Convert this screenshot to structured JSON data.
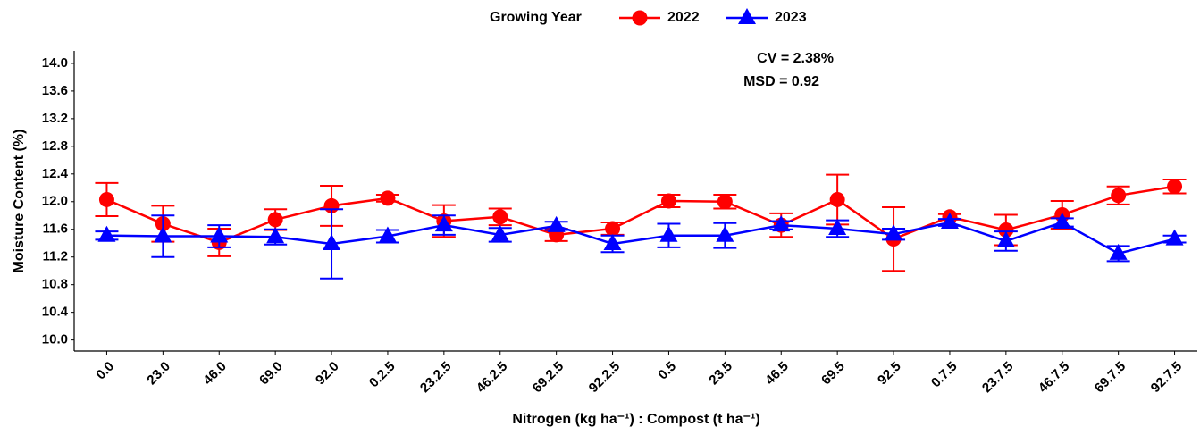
{
  "chart_data": {
    "type": "line",
    "legend_title": "Growing Year",
    "legend_position": "top",
    "x_label": "Nitrogen (kg ha⁻¹) : Compost (t ha⁻¹)",
    "y_label": "Moisture Content (%)",
    "annotations": [
      "CV = 2.38%",
      "MSD = 0.92"
    ],
    "categories": [
      "0.0",
      "23.0",
      "46.0",
      "69.0",
      "92.0",
      "0.2.5",
      "23.2.5",
      "46.2.5",
      "69.2.5",
      "92.2.5",
      "0.5",
      "23.5",
      "46.5",
      "69.5",
      "92.5",
      "0.7.5",
      "23.7.5",
      "46.7.5",
      "69.7.5",
      "92.7.5"
    ],
    "series": [
      {
        "name": "2022",
        "color": "#ff0000",
        "marker": "circle",
        "values": [
          12.03,
          11.68,
          11.41,
          11.74,
          11.94,
          12.05,
          11.72,
          11.78,
          11.52,
          11.61,
          12.01,
          12.0,
          11.66,
          12.03,
          11.46,
          11.78,
          11.59,
          11.81,
          12.09,
          12.22
        ],
        "errors": [
          0.24,
          0.26,
          0.2,
          0.15,
          0.29,
          0.05,
          0.23,
          0.12,
          0.09,
          0.09,
          0.09,
          0.1,
          0.17,
          0.36,
          0.46,
          0.04,
          0.22,
          0.2,
          0.13,
          0.1
        ]
      },
      {
        "name": "2023",
        "color": "#0000ff",
        "marker": "triangle",
        "values": [
          11.51,
          11.5,
          11.5,
          11.49,
          11.39,
          11.5,
          11.66,
          11.52,
          11.65,
          11.39,
          11.51,
          11.51,
          11.66,
          11.61,
          11.53,
          11.7,
          11.43,
          11.7,
          11.25,
          11.46
        ],
        "errors": [
          0.06,
          0.3,
          0.16,
          0.11,
          0.5,
          0.09,
          0.14,
          0.1,
          0.06,
          0.12,
          0.17,
          0.18,
          0.06,
          0.12,
          0.08,
          0.05,
          0.14,
          0.06,
          0.11,
          0.05
        ]
      }
    ],
    "ylim": [
      9.84,
      14.18
    ],
    "yticks": [
      {
        "value": 10,
        "label": "10.0"
      },
      10.4,
      10.8,
      11.2,
      11.6,
      {
        "value": 12,
        "label": "12.0"
      },
      12.4,
      12.8,
      13.2,
      13.6,
      {
        "value": 14,
        "label": "14.0"
      }
    ],
    "grid": false
  }
}
